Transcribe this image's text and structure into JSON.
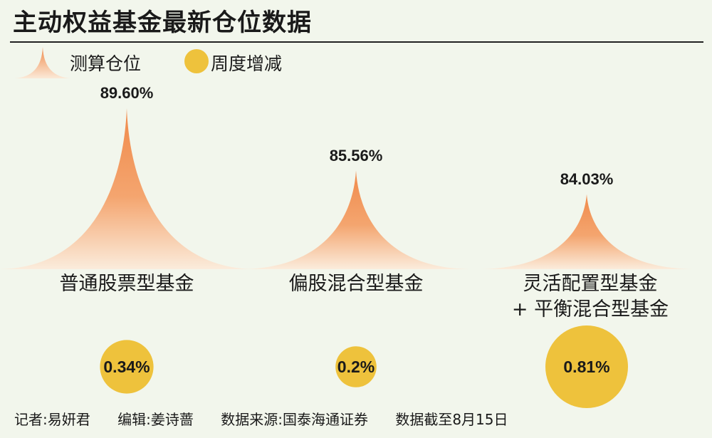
{
  "title": "主动权益基金最新仓位数据",
  "legend": [
    {
      "label": "测算仓位",
      "icon": "peak-icon",
      "color": "#f08a4b"
    },
    {
      "label": "周度增减",
      "icon": "circle-icon",
      "color": "#eec23c"
    }
  ],
  "chart_data": {
    "type": "bar",
    "categories": [
      "普通股票型基金",
      "偏股混合型基金",
      "灵活配置型基金\n+ 平衡混合型基金"
    ],
    "series": [
      {
        "name": "测算仓位",
        "values": [
          89.6,
          85.56,
          84.03
        ],
        "labels": [
          "89.60%",
          "85.56%",
          "84.03%"
        ]
      },
      {
        "name": "周度增减",
        "values": [
          0.34,
          0.2,
          0.81
        ],
        "labels": [
          "0.34%",
          "0.2%",
          "0.81%"
        ]
      }
    ],
    "legend_position": "top-left",
    "grid": false,
    "colors": {
      "peak_top": "#f08a4b",
      "peak_base": "#fbe9d7",
      "bubble": "#eec23c"
    }
  },
  "footer": {
    "reporter": "记者:易妍君",
    "editor": "编辑:姜诗蔷",
    "source": "数据来源:国泰海通证券",
    "cutoff": "数据截至8月15日"
  }
}
